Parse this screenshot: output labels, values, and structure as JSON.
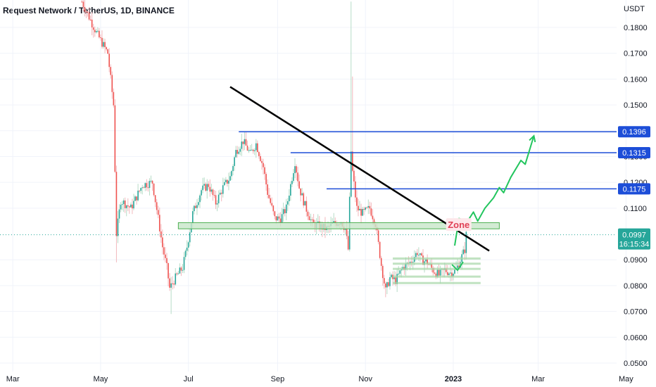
{
  "title": "Request Network / TetherUS, 1D, BINANCE",
  "currency": "USDT",
  "colors": {
    "up": "#26a69a",
    "down": "#ef5350",
    "up_light": "#b7dcc7",
    "down_light": "#f2b8bd",
    "trendline": "#000000",
    "resistance": "#1d4ed8",
    "zone_fill": "#c8e6c9",
    "zone_border": "#4caf50",
    "projection": "#22c55e",
    "zone_label": "#e04055",
    "price_tag": "#26a69a",
    "grid": "#f0f3fa"
  },
  "chart_data": {
    "type": "candlestick",
    "title": "Request Network / TetherUS, 1D, BINANCE",
    "xlabel": "",
    "ylabel": "USDT",
    "ylim": [
      0.047,
      0.191
    ],
    "grid": true,
    "y_ticks": [
      "0.1800",
      "0.1700",
      "0.1600",
      "0.1500",
      "0.1400",
      "0.1300",
      "0.1200",
      "0.1100",
      "0.0900",
      "0.0800",
      "0.0700",
      "0.0600",
      "0.0500"
    ],
    "x_ticks": [
      "Mar",
      "May",
      "Jul",
      "Sep",
      "Nov",
      "2023",
      "Mar",
      "May"
    ],
    "x_ticks_bold": [
      false,
      false,
      false,
      false,
      false,
      true,
      false,
      false
    ],
    "candle_path": [
      [
        "2022-04-18",
        0.19
      ],
      [
        "2022-04-28",
        0.178
      ],
      [
        "2022-05-06",
        0.17
      ],
      [
        "2022-05-10",
        0.15
      ],
      [
        "2022-05-12",
        0.1
      ],
      [
        "2022-05-15",
        0.113
      ],
      [
        "2022-05-22",
        0.11
      ],
      [
        "2022-05-30",
        0.119
      ],
      [
        "2022-06-06",
        0.12
      ],
      [
        "2022-06-10",
        0.106
      ],
      [
        "2022-06-13",
        0.095
      ],
      [
        "2022-06-16",
        0.087
      ],
      [
        "2022-06-18",
        0.079
      ],
      [
        "2022-06-22",
        0.083
      ],
      [
        "2022-06-27",
        0.087
      ],
      [
        "2022-06-30",
        0.095
      ],
      [
        "2022-07-04",
        0.108
      ],
      [
        "2022-07-10",
        0.117
      ],
      [
        "2022-07-15",
        0.119
      ],
      [
        "2022-07-20",
        0.112
      ],
      [
        "2022-07-25",
        0.118
      ],
      [
        "2022-07-30",
        0.122
      ],
      [
        "2022-08-03",
        0.132
      ],
      [
        "2022-08-08",
        0.136
      ],
      [
        "2022-08-13",
        0.131
      ],
      [
        "2022-08-17",
        0.135
      ],
      [
        "2022-08-22",
        0.126
      ],
      [
        "2022-08-25",
        0.116
      ],
      [
        "2022-08-30",
        0.106
      ],
      [
        "2022-09-03",
        0.106
      ],
      [
        "2022-09-07",
        0.11
      ],
      [
        "2022-09-10",
        0.119
      ],
      [
        "2022-09-13",
        0.128
      ],
      [
        "2022-09-16",
        0.118
      ],
      [
        "2022-09-20",
        0.111
      ],
      [
        "2022-09-25",
        0.104
      ],
      [
        "2022-09-30",
        0.103
      ],
      [
        "2022-10-05",
        0.102
      ],
      [
        "2022-10-10",
        0.104
      ],
      [
        "2022-10-15",
        0.105
      ],
      [
        "2022-10-18",
        0.102
      ],
      [
        "2022-10-20",
        0.094
      ],
      [
        "2022-10-22",
        0.132
      ],
      [
        "2022-10-23",
        0.124
      ],
      [
        "2022-10-26",
        0.11
      ],
      [
        "2022-10-30",
        0.108
      ],
      [
        "2022-11-04",
        0.11
      ],
      [
        "2022-11-08",
        0.104
      ],
      [
        "2022-11-12",
        0.088
      ],
      [
        "2022-11-15",
        0.078
      ],
      [
        "2022-11-18",
        0.083
      ],
      [
        "2022-11-22",
        0.082
      ],
      [
        "2022-11-27",
        0.087
      ],
      [
        "2022-12-02",
        0.089
      ],
      [
        "2022-12-07",
        0.093
      ],
      [
        "2022-12-10",
        0.09
      ],
      [
        "2022-12-14",
        0.089
      ],
      [
        "2022-12-18",
        0.086
      ],
      [
        "2022-12-22",
        0.084
      ],
      [
        "2022-12-26",
        0.086
      ],
      [
        "2022-12-30",
        0.085
      ],
      [
        "2023-01-03",
        0.086
      ],
      [
        "2023-01-06",
        0.09
      ],
      [
        "2023-01-09",
        0.094
      ],
      [
        "2023-01-10",
        0.0997
      ]
    ],
    "last_price": "0.0997",
    "countdown": "16:15:34",
    "support_zone": {
      "from": "2022-06-24",
      "to": "2023-02-02",
      "low": 0.102,
      "high": 0.1044
    },
    "zone_label": "Zone",
    "trendline": {
      "start": [
        "2022-07-30",
        0.157
      ],
      "end": [
        "2023-01-26",
        0.0935
      ]
    },
    "resistance_levels": [
      {
        "value": 0.1396,
        "label": "0.1396",
        "from": "2022-08-05"
      },
      {
        "value": 0.1315,
        "label": "0.1315",
        "from": "2022-09-10"
      },
      {
        "value": 0.1175,
        "label": "0.1175",
        "from": "2022-10-05"
      }
    ],
    "demand_lines": [
      0.081,
      0.0835,
      0.0865,
      0.0885,
      0.0905
    ],
    "demand_range": {
      "from": "2022-11-20",
      "to": "2023-01-20"
    },
    "projection": [
      [
        "2023-01-02",
        0.0955
      ],
      [
        "2023-01-05",
        0.106
      ],
      [
        "2023-01-11",
        0.105
      ],
      [
        "2023-01-15",
        0.1085
      ],
      [
        "2023-01-18",
        0.105
      ],
      [
        "2023-01-23",
        0.11
      ],
      [
        "2023-01-29",
        0.114
      ],
      [
        "2023-02-02",
        0.118
      ],
      [
        "2023-02-05",
        0.116
      ],
      [
        "2023-02-10",
        0.122
      ],
      [
        "2023-02-17",
        0.1285
      ],
      [
        "2023-02-20",
        0.127
      ],
      [
        "2023-02-26",
        0.138
      ]
    ]
  }
}
